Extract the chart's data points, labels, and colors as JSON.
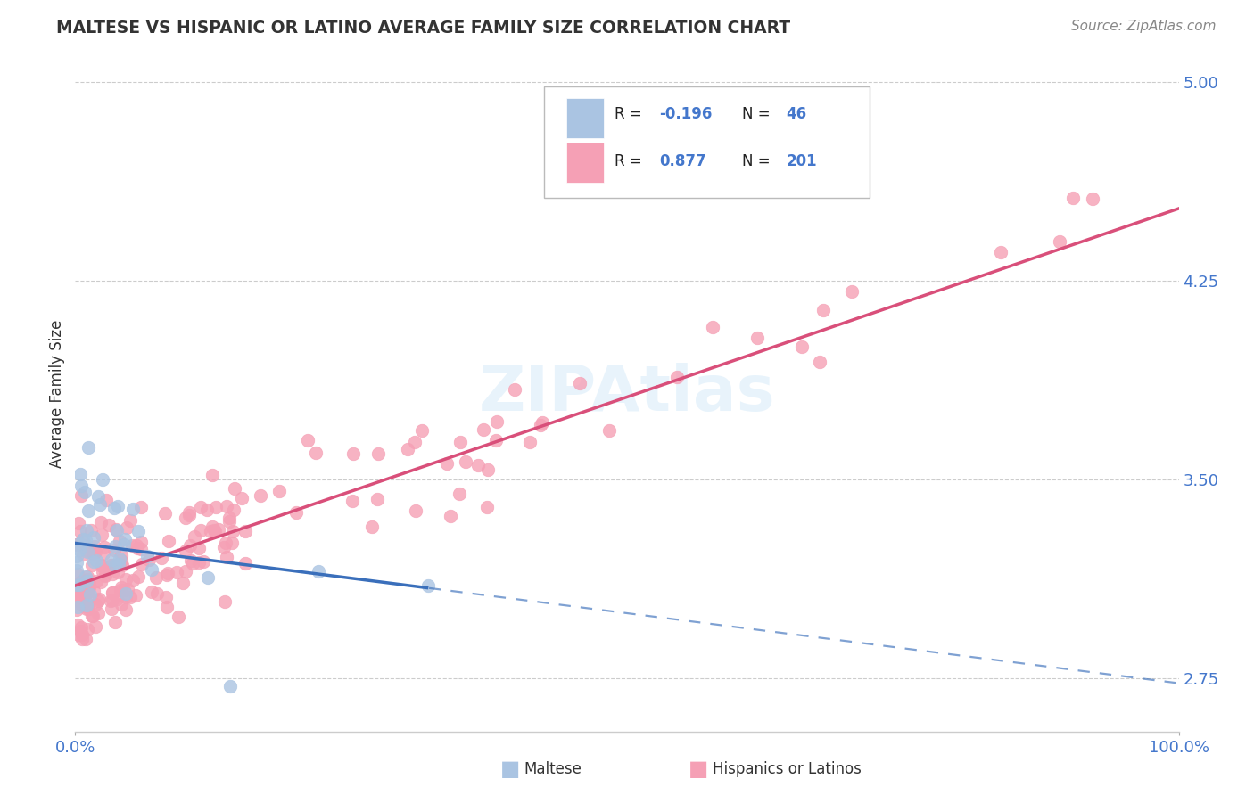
{
  "title": "MALTESE VS HISPANIC OR LATINO AVERAGE FAMILY SIZE CORRELATION CHART",
  "source": "Source: ZipAtlas.com",
  "ylabel": "Average Family Size",
  "right_ytick_labels": [
    "2.75",
    "3.50",
    "4.25",
    "5.00"
  ],
  "right_ytick_values": [
    2.75,
    3.5,
    4.25,
    5.0
  ],
  "maltese_R": -0.196,
  "maltese_N": 46,
  "hispanic_R": 0.877,
  "hispanic_N": 201,
  "maltese_color": "#aac4e2",
  "hispanic_color": "#f5a0b5",
  "maltese_line_color": "#3a6fbb",
  "hispanic_line_color": "#d94f7a",
  "xmin": 0.0,
  "xmax": 1.0,
  "ymin": 2.55,
  "ymax": 5.1
}
